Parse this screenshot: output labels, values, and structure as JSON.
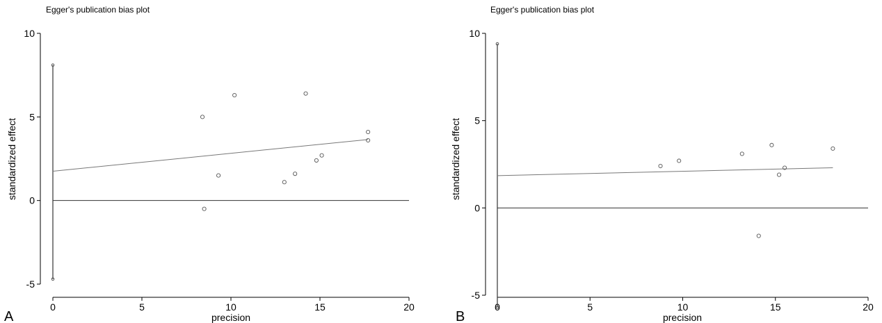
{
  "chart_data": [
    {
      "panel_label": "A",
      "type": "scatter",
      "title": "Egger's publication bias plot",
      "xlabel": "precision",
      "ylabel": "standardized effect",
      "xlim": [
        0,
        20
      ],
      "ylim": [
        -5,
        10
      ],
      "x_ticks": [
        0,
        5,
        10,
        15,
        20
      ],
      "y_ticks": [
        -5,
        0,
        5,
        10
      ],
      "grid": false,
      "points": [
        {
          "x": 8.4,
          "y": 5.0
        },
        {
          "x": 8.5,
          "y": -0.5
        },
        {
          "x": 9.3,
          "y": 1.5
        },
        {
          "x": 10.2,
          "y": 6.3
        },
        {
          "x": 13.0,
          "y": 1.1
        },
        {
          "x": 13.6,
          "y": 1.6
        },
        {
          "x": 14.2,
          "y": 6.4
        },
        {
          "x": 14.8,
          "y": 2.4
        },
        {
          "x": 15.1,
          "y": 2.7
        },
        {
          "x": 17.7,
          "y": 4.1
        },
        {
          "x": 17.7,
          "y": 3.6
        }
      ],
      "regression_line": {
        "x": [
          0,
          17.7
        ],
        "y": [
          1.75,
          3.65
        ]
      },
      "intercept_ci": [
        -4.7,
        8.1
      ],
      "zero_line_x_range": [
        0,
        20
      ]
    },
    {
      "panel_label": "B",
      "type": "scatter",
      "title": "Egger's publication bias plot",
      "xlabel": "precision",
      "ylabel": "standardized effect",
      "xlim": [
        0,
        20
      ],
      "ylim": [
        -5,
        10
      ],
      "x_ticks": [
        0,
        5,
        10,
        15,
        20
      ],
      "y_ticks": [
        -5,
        0,
        5,
        10
      ],
      "grid": false,
      "points": [
        {
          "x": 8.8,
          "y": 2.4
        },
        {
          "x": 9.8,
          "y": 2.7
        },
        {
          "x": 13.2,
          "y": 3.1
        },
        {
          "x": 14.1,
          "y": -1.6
        },
        {
          "x": 14.8,
          "y": 3.6
        },
        {
          "x": 15.2,
          "y": 1.9
        },
        {
          "x": 15.5,
          "y": 2.3
        },
        {
          "x": 18.1,
          "y": 3.4
        }
      ],
      "regression_line": {
        "x": [
          0,
          18.1
        ],
        "y": [
          1.85,
          2.3
        ]
      },
      "intercept_ci": [
        -5.7,
        9.4
      ],
      "zero_line_x_range": [
        0,
        20
      ]
    }
  ]
}
